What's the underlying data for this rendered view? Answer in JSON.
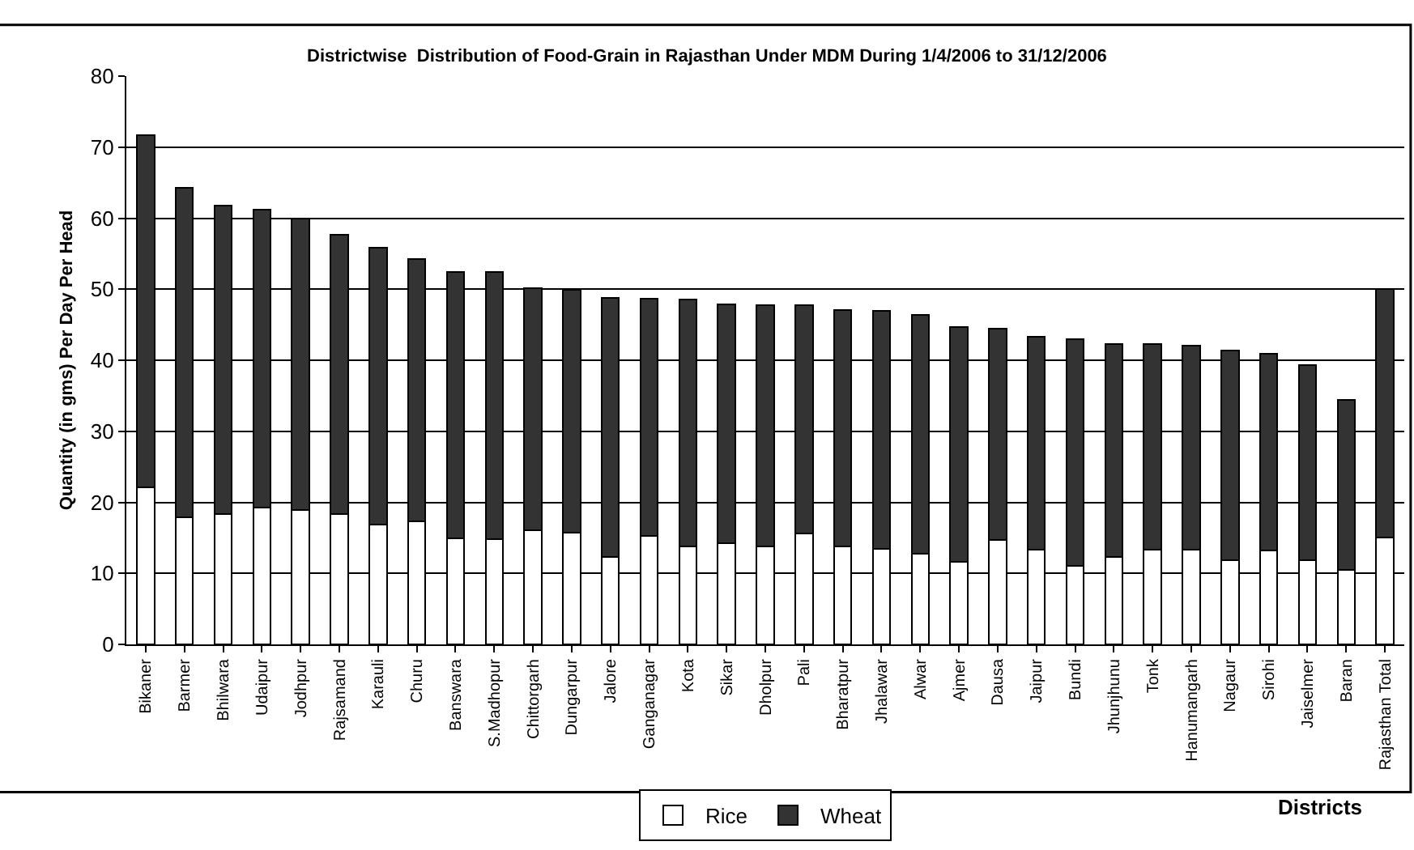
{
  "chart_data": {
    "type": "bar",
    "title": "Districtwise  Distribution of Food-Grain in Rajasthan Under MDM During 1/4/2006 to 31/12/2006",
    "xlabel": "Districts",
    "ylabel": "Quantity (in gms) Per Day Per Head",
    "categories": [
      "Bikaner",
      "Barmer",
      "Bhilwara",
      "Udaipur",
      "Jodhpur",
      "Rajsamand",
      "Karauli",
      "Churu",
      "Banswara",
      "S.Madhopur",
      "Chittorgarh",
      "Dungarpur",
      "Jalore",
      "Ganganagar",
      "Kota",
      "Sikar",
      "Dholpur",
      "Pali",
      "Bharatpur",
      "Jhalawar",
      "Alwar",
      "Ajmer",
      "Dausa",
      "Jaipur",
      "Bundi",
      "Jhunjhunu",
      "Tonk",
      "Hanumangarh",
      "Nagaur",
      "Sirohi",
      "Jaiselmer",
      "Baran",
      "Rajasthan Total"
    ],
    "stacked": true,
    "series": [
      {
        "name": "Rice",
        "color": "#ffffff",
        "values": [
          22.1,
          17.9,
          18.3,
          19.3,
          18.9,
          18.4,
          16.9,
          17.3,
          14.9,
          14.8,
          16.1,
          15.7,
          12.3,
          15.3,
          13.8,
          14.2,
          13.8,
          15.6,
          13.8,
          13.4,
          12.8,
          11.6,
          14.7,
          13.3,
          11.1,
          12.3,
          13.3,
          13.3,
          11.9,
          13.2,
          11.8,
          10.5,
          15.0
        ]
      },
      {
        "name": "Wheat",
        "color": "#333333",
        "values": [
          49.6,
          46.4,
          43.5,
          41.9,
          41.1,
          39.3,
          38.9,
          36.9,
          37.5,
          37.6,
          34.1,
          34.2,
          36.5,
          33.4,
          34.7,
          33.7,
          34.0,
          32.1,
          33.3,
          33.5,
          33.6,
          33.1,
          29.8,
          30.0,
          31.9,
          30.0,
          29.0,
          28.7,
          29.5,
          27.7,
          27.5,
          23.9,
          35.0
        ]
      }
    ],
    "ylim": [
      0,
      80
    ],
    "yticks": [
      0,
      10,
      20,
      30,
      40,
      50,
      60,
      70,
      80
    ],
    "grid": "y",
    "legend": "bottom"
  }
}
